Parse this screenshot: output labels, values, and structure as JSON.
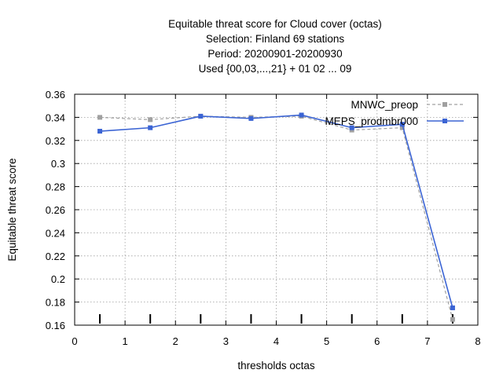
{
  "chart_data": {
    "type": "line",
    "title_lines": [
      "Equitable threat score  for Cloud cover (octas)",
      "Selection: Finland     69 stations",
      "Period: 20200901-20200930",
      "Used {00,03,...,21} + 01 02 ... 09"
    ],
    "xlabel": "thresholds octas",
    "ylabel": "Equitable threat score",
    "xlim": [
      0,
      8
    ],
    "ylim": [
      0.16,
      0.36
    ],
    "xticks": [
      0,
      1,
      2,
      3,
      4,
      5,
      6,
      7,
      8
    ],
    "xtick_labels": [
      "0",
      "1",
      "2",
      "3",
      "4",
      "5",
      "6",
      "7",
      "8"
    ],
    "yticks": [
      0.16,
      0.18,
      0.2,
      0.22,
      0.24,
      0.26,
      0.28,
      0.3,
      0.32,
      0.34,
      0.36
    ],
    "ytick_labels": [
      "0.16",
      "0.18",
      "0.2",
      "0.22",
      "0.24",
      "0.26",
      "0.28",
      "0.3",
      "0.32",
      "0.34",
      "0.36"
    ],
    "grid": true,
    "legend_position": "top-right",
    "x": [
      0.5,
      1.5,
      2.5,
      3.5,
      4.5,
      5.5,
      6.5,
      7.5
    ],
    "bottom_markers_x": [
      0.5,
      1.5,
      2.5,
      3.5,
      4.5,
      5.5,
      6.5,
      7.5
    ],
    "series": [
      {
        "name": "MNWC_preop",
        "color": "#a0a0a0",
        "dashed": true,
        "values": [
          0.34,
          0.338,
          0.341,
          0.34,
          0.341,
          0.329,
          0.331,
          0.165
        ]
      },
      {
        "name": "MEPS_prodmbr000",
        "color": "#3b64d4",
        "dashed": false,
        "values": [
          0.328,
          0.331,
          0.341,
          0.339,
          0.342,
          0.331,
          0.334,
          0.175
        ]
      }
    ]
  }
}
